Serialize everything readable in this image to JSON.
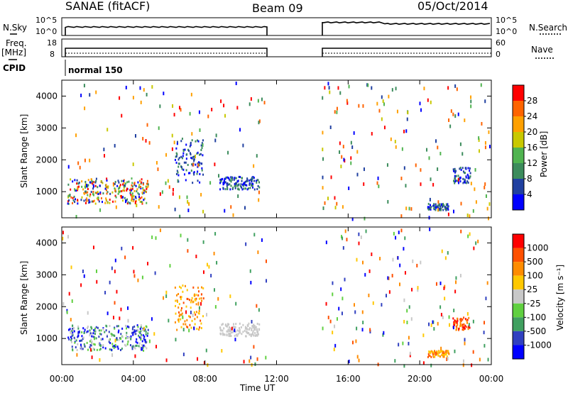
{
  "header": {
    "station": "SANAE (fitACF)",
    "beam": "Beam 09",
    "date": "05/Oct/2014"
  },
  "top_panels": {
    "nsky_label": "N.Sky",
    "nsearch_label": "N.Search",
    "freq_label": "Freq.",
    "freq_unit": "[MHz]",
    "nave_label": "Nave",
    "cpid_label": "CPID",
    "cpid_value": "normal 150",
    "noise_ticks_left": [
      "10^5",
      "10^0"
    ],
    "noise_ticks_right": [
      "10^5",
      "10^0"
    ],
    "freq_ticks": [
      "18",
      "8"
    ],
    "nave_ticks": [
      "60",
      "0"
    ]
  },
  "colors": {
    "power_scale": [
      "#0000ff",
      "#2040a0",
      "#3c8c5c",
      "#50b450",
      "#c8c800",
      "#ffa000",
      "#ff6400",
      "#ff0000"
    ],
    "velocity_scale": [
      "#0000ff",
      "#3040c0",
      "#40a060",
      "#60d040",
      "#c8c8c8",
      "#ffc800",
      "#ff8c00",
      "#ff5000",
      "#ff0000"
    ]
  },
  "chart_data": [
    {
      "type": "heatmap",
      "title": "",
      "xlabel": "",
      "ylabel": "Slant Range [km]",
      "x_ticks": [
        "00:00",
        "04:00",
        "08:00",
        "12:00",
        "16:00",
        "20:00",
        "00:00"
      ],
      "xlim_hours": [
        0,
        24
      ],
      "ylim_km": [
        180,
        4500
      ],
      "y_ticks": [
        "1000",
        "2000",
        "3000",
        "4000"
      ],
      "colorbar_label": "Power [dB]",
      "colorbar_ticks": [
        "4",
        "8",
        "12",
        "16",
        "20",
        "24",
        "28"
      ],
      "regions": [
        {
          "x0": 0.3,
          "x1": 4.8,
          "y0": 650,
          "y1": 1450,
          "level": "mixed-high"
        },
        {
          "x0": 6.3,
          "x1": 7.9,
          "y0": 1300,
          "y1": 2700,
          "level": "low"
        },
        {
          "x0": 8.8,
          "x1": 11.0,
          "y0": 1100,
          "y1": 1500,
          "level": "low"
        },
        {
          "x0": 21.8,
          "x1": 22.8,
          "y0": 1300,
          "y1": 1800,
          "level": "low"
        },
        {
          "x0": 20.4,
          "x1": 21.6,
          "y0": 450,
          "y1": 650,
          "level": "low"
        }
      ]
    },
    {
      "type": "heatmap",
      "title": "",
      "xlabel": "Time UT",
      "ylabel": "Slant Range [km]",
      "x_ticks": [
        "00:00",
        "04:00",
        "08:00",
        "12:00",
        "16:00",
        "20:00",
        "00:00"
      ],
      "xlim_hours": [
        0,
        24
      ],
      "ylim_km": [
        180,
        4500
      ],
      "y_ticks": [
        "1000",
        "2000",
        "3000",
        "4000"
      ],
      "colorbar_label": "Velocity [m s⁻¹]",
      "colorbar_ticks": [
        "1000",
        "500",
        "100",
        "25",
        "-25",
        "-100",
        "-500",
        "-1000"
      ],
      "regions": [
        {
          "x0": 0.3,
          "x1": 4.8,
          "y0": 650,
          "y1": 1450,
          "level": "mixed-blue-green"
        },
        {
          "x0": 6.3,
          "x1": 7.9,
          "y0": 1300,
          "y1": 2700,
          "level": "orange"
        },
        {
          "x0": 8.8,
          "x1": 11.0,
          "y0": 1100,
          "y1": 1500,
          "level": "grey"
        },
        {
          "x0": 21.8,
          "x1": 22.8,
          "y0": 1300,
          "y1": 1700,
          "level": "orange-red"
        },
        {
          "x0": 20.4,
          "x1": 21.6,
          "y0": 450,
          "y1": 650,
          "level": "orange"
        }
      ]
    }
  ]
}
